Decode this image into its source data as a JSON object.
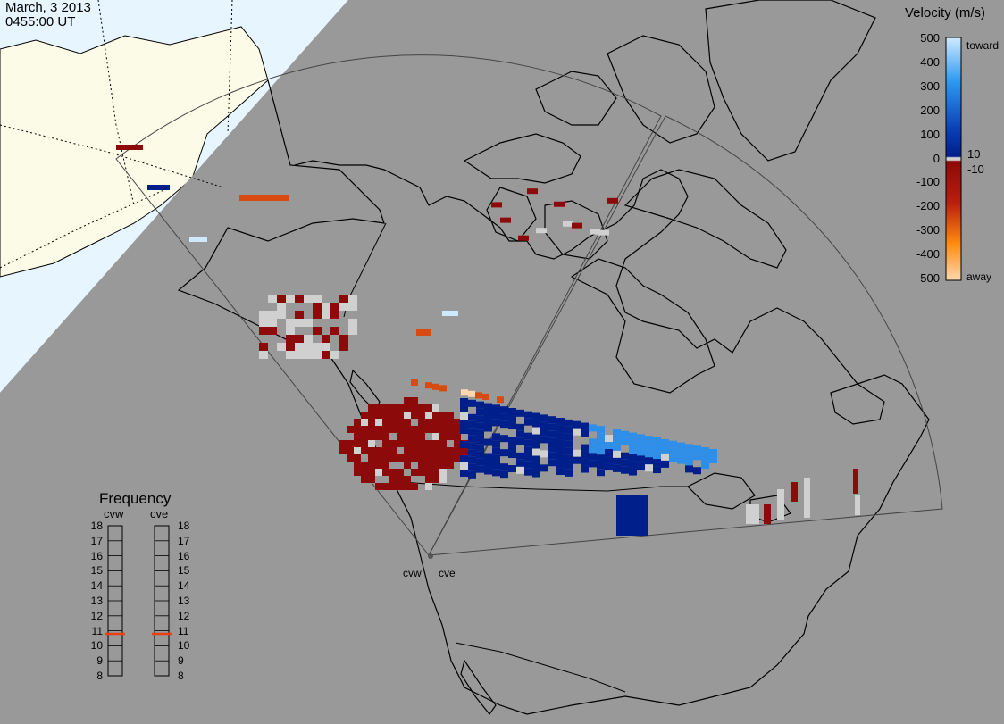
{
  "header": {
    "date": "March, 3 2013",
    "time": "0455:00 UT"
  },
  "velocity_scale": {
    "title": "Velocity (m/s)",
    "ticks": [
      "500",
      "400",
      "300",
      "200",
      "100",
      "0",
      "-100",
      "-200",
      "-300",
      "-400",
      "-500"
    ],
    "toward_label": "toward",
    "away_label": "away",
    "pos_threshold": "10",
    "neg_threshold": "-10",
    "colors": {
      "toward_light": "#cfe9ff",
      "toward_mid": "#2e8ee8",
      "toward_dark": "#001f8a",
      "ground_scatter": "#d0d0d0",
      "away_dark": "#8c0a0a",
      "away_mid": "#d84a10",
      "away_light": "#ffd7b0"
    }
  },
  "frequency_panel": {
    "title": "Frequency",
    "radars": [
      "cvw",
      "cve"
    ],
    "ticks": [
      "18",
      "17",
      "16",
      "15",
      "14",
      "13",
      "12",
      "11",
      "10",
      "9",
      "8"
    ],
    "values_mhz": [
      10.8,
      10.8
    ],
    "marker_color": "#e84010"
  },
  "radar_sites": {
    "west": "cvw",
    "east": "cve"
  },
  "map_colors": {
    "ocean": "#999999",
    "daylight": "#fbfbe8",
    "sunlit_sea": "#e6f5ff",
    "coast": "#000000"
  }
}
